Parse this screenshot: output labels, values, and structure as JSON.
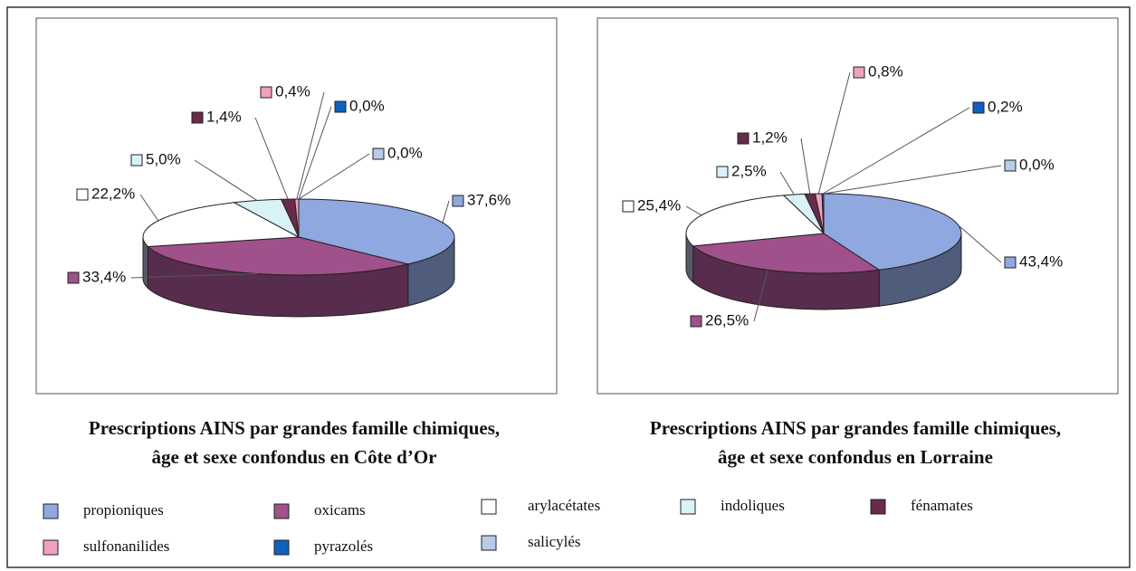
{
  "chart_data": [
    {
      "type": "pie",
      "title": "Prescriptions AINS par grandes famille chimiques,",
      "subtitle": "âge et sexe confondus en Côte d’Or",
      "categories": [
        "propioniques",
        "oxicams",
        "arylacétates",
        "indoliques",
        "fénamates",
        "sulfonanilides",
        "pyrazolés",
        "salicylés"
      ],
      "values": [
        37.6,
        33.4,
        22.2,
        5.0,
        1.4,
        0.4,
        0.0,
        0.0
      ],
      "value_labels": [
        "37,6%",
        "33,4%",
        "22,2%",
        "5,0%",
        "1,4%",
        "0,4%",
        "0,0%",
        "0,0%"
      ],
      "colors": [
        "#8fa8e0",
        "#a0508a",
        "#ffffff",
        "#d8f2f8",
        "#6a2a4a",
        "#f0a0c0",
        "#1060c0",
        "#b8cce8"
      ]
    },
    {
      "type": "pie",
      "title": "Prescriptions AINS par grandes famille chimiques,",
      "subtitle": "âge et sexe confondus en Lorraine",
      "categories": [
        "propioniques",
        "oxicams",
        "arylacétates",
        "indoliques",
        "fénamates",
        "sulfonanilides",
        "pyrazolés",
        "salicylés"
      ],
      "values": [
        43.4,
        26.5,
        25.4,
        2.5,
        1.2,
        0.8,
        0.2,
        0.0
      ],
      "value_labels": [
        "43,4%",
        "26,5%",
        "25,4%",
        "2,5%",
        "1,2%",
        "0,8%",
        "0,2%",
        "0,0%"
      ],
      "colors": [
        "#8fa8e0",
        "#a0508a",
        "#ffffff",
        "#d8f2f8",
        "#6a2a4a",
        "#f0a0c0",
        "#1060c0",
        "#b8cce8"
      ]
    }
  ]
}
